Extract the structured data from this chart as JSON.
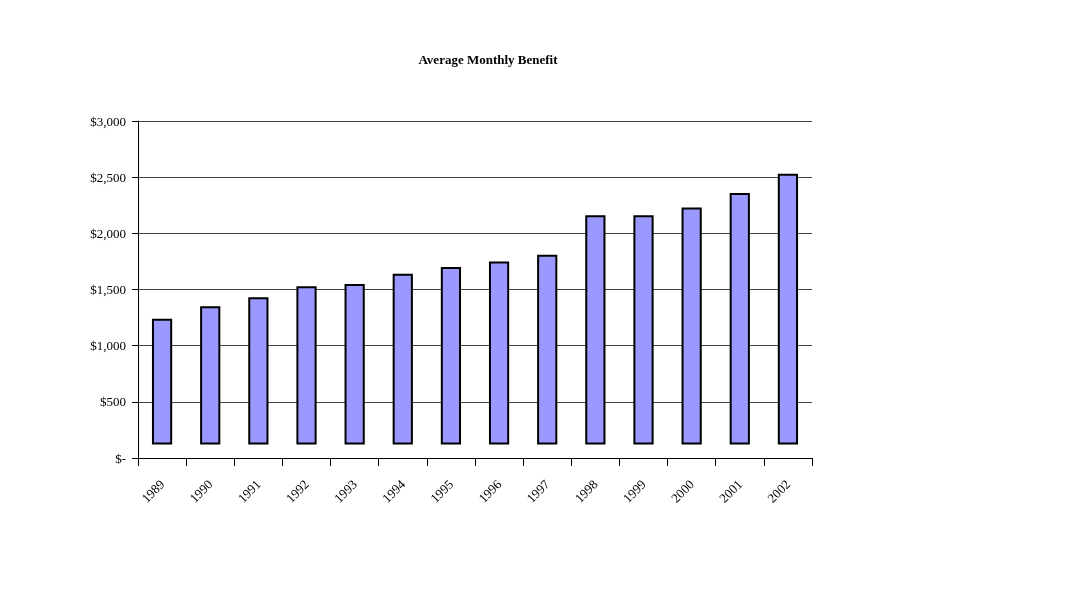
{
  "chart_data": {
    "type": "bar",
    "title": "Average Monthly Benefit",
    "categories": [
      "1989",
      "1990",
      "1991",
      "1992",
      "1993",
      "1994",
      "1995",
      "1996",
      "1997",
      "1998",
      "1999",
      "2000",
      "2001",
      "2002"
    ],
    "values": [
      1120,
      1230,
      1310,
      1410,
      1430,
      1520,
      1580,
      1630,
      1690,
      2040,
      2040,
      2110,
      2240,
      2410
    ],
    "base": [
      120,
      120,
      120,
      120,
      120,
      120,
      120,
      120,
      120,
      120,
      120,
      120,
      120,
      120
    ],
    "color": "#9999ff",
    "ylim": [
      0,
      3000
    ],
    "yticks": [
      {
        "value": 0,
        "label": "$-"
      },
      {
        "value": 500,
        "label": "$500"
      },
      {
        "value": 1000,
        "label": "$1,000"
      },
      {
        "value": 1500,
        "label": "$1,500"
      },
      {
        "value": 2000,
        "label": "$2,000"
      },
      {
        "value": 2500,
        "label": "$2,500"
      },
      {
        "value": 3000,
        "label": "$3,000"
      }
    ],
    "grid": "y"
  }
}
